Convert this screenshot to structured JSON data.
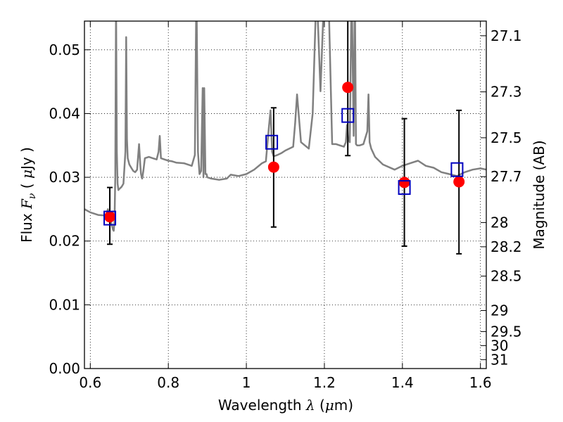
{
  "chart_data": {
    "type": "line",
    "title": "",
    "xlabel": {
      "prefix": "Wavelength ",
      "symbol": "λ",
      "units_open": " (",
      "units_mu": "μ",
      "units_rest": "m)"
    },
    "ylabel": {
      "prefix": "Flux ",
      "symbol": "F",
      "subscript": "ν",
      "units_open": " ( ",
      "units_mu": "μ",
      "units_rest": "Jy )"
    },
    "y2label": "Magnitude (AB)",
    "xlim": [
      0.585,
      1.615
    ],
    "ylim": [
      0.0,
      0.0545
    ],
    "grid": true,
    "x_ticks": [
      0.6,
      0.8,
      1.0,
      1.2,
      1.4,
      1.6
    ],
    "x_tick_labels": [
      "0.6",
      "0.8",
      "1",
      "1.2",
      "1.4",
      "1.6"
    ],
    "y_ticks": [
      0.0,
      0.01,
      0.02,
      0.03,
      0.04,
      0.05
    ],
    "y_tick_labels": [
      "0.00",
      "0.01",
      "0.02",
      "0.03",
      "0.04",
      "0.05"
    ],
    "y2_ticks": [
      {
        "label": "27.1",
        "flux": 0.0522
      },
      {
        "label": "27.3",
        "flux": 0.0434
      },
      {
        "label": "27.5",
        "flux": 0.0362
      },
      {
        "label": "27.7",
        "flux": 0.0301
      },
      {
        "label": "28",
        "flux": 0.0229
      },
      {
        "label": "28.2",
        "flux": 0.0191
      },
      {
        "label": "28.5",
        "flux": 0.0145
      },
      {
        "label": "29",
        "flux": 0.0091
      },
      {
        "label": "29.5",
        "flux": 0.0058
      },
      {
        "label": "30",
        "flux": 0.0036
      },
      {
        "label": "31",
        "flux": 0.0014
      }
    ],
    "series": [
      {
        "kind": "model_sed",
        "color": "#808080",
        "x": [
          0.585,
          0.6,
          0.62,
          0.64,
          0.645,
          0.65,
          0.655,
          0.658,
          0.66,
          0.662,
          0.664,
          0.666,
          0.668,
          0.67,
          0.672,
          0.675,
          0.68,
          0.685,
          0.69,
          0.692,
          0.694,
          0.696,
          0.7,
          0.705,
          0.71,
          0.715,
          0.72,
          0.725,
          0.728,
          0.73,
          0.733,
          0.736,
          0.74,
          0.75,
          0.76,
          0.77,
          0.775,
          0.778,
          0.781,
          0.79,
          0.8,
          0.81,
          0.82,
          0.84,
          0.86,
          0.868,
          0.872,
          0.876,
          0.88,
          0.884,
          0.888,
          0.89,
          0.892,
          0.895,
          0.898,
          0.9,
          0.91,
          0.93,
          0.95,
          0.96,
          0.98,
          1.0,
          1.02,
          1.04,
          1.05,
          1.058,
          1.062,
          1.066,
          1.07,
          1.08,
          1.09,
          1.1,
          1.12,
          1.125,
          1.13,
          1.14,
          1.16,
          1.17,
          1.18,
          1.19,
          1.2,
          1.21,
          1.22,
          1.23,
          1.24,
          1.25,
          1.255,
          1.258,
          1.261,
          1.265,
          1.27,
          1.275,
          1.278,
          1.281,
          1.284,
          1.29,
          1.3,
          1.31,
          1.313,
          1.316,
          1.32,
          1.33,
          1.35,
          1.38,
          1.4,
          1.42,
          1.44,
          1.46,
          1.48,
          1.5,
          1.52,
          1.54,
          1.56,
          1.58,
          1.6,
          1.615
        ],
        "y": [
          0.025,
          0.0245,
          0.0241,
          0.024,
          0.025,
          0.0238,
          0.0225,
          0.0218,
          0.0216,
          0.023,
          0.03,
          0.058,
          0.034,
          0.029,
          0.028,
          0.0282,
          0.0285,
          0.029,
          0.034,
          0.052,
          0.036,
          0.033,
          0.032,
          0.0315,
          0.031,
          0.0308,
          0.0312,
          0.0352,
          0.032,
          0.0305,
          0.0298,
          0.031,
          0.033,
          0.0332,
          0.033,
          0.0328,
          0.034,
          0.0365,
          0.033,
          0.0328,
          0.0326,
          0.0325,
          0.0323,
          0.0322,
          0.0318,
          0.0335,
          0.06,
          0.034,
          0.0305,
          0.031,
          0.044,
          0.03,
          0.044,
          0.0305,
          0.0305,
          0.03,
          0.0298,
          0.0296,
          0.0298,
          0.0304,
          0.0302,
          0.0305,
          0.0312,
          0.0322,
          0.0325,
          0.038,
          0.0405,
          0.034,
          0.0333,
          0.0335,
          0.0338,
          0.0342,
          0.0348,
          0.0385,
          0.043,
          0.0355,
          0.0345,
          0.04,
          0.06,
          0.0435,
          0.06,
          0.06,
          0.0352,
          0.0352,
          0.035,
          0.0348,
          0.0355,
          0.0382,
          0.036,
          0.0355,
          0.06,
          0.0365,
          0.06,
          0.0352,
          0.035,
          0.035,
          0.0352,
          0.0372,
          0.043,
          0.0355,
          0.0345,
          0.0332,
          0.032,
          0.0312,
          0.0318,
          0.0322,
          0.0326,
          0.0318,
          0.0315,
          0.0308,
          0.0305,
          0.0302,
          0.0308,
          0.0312,
          0.0314,
          0.0312
        ]
      },
      {
        "kind": "observed",
        "marker": "circle",
        "color": "#ff0000",
        "x": [
          0.65,
          1.07,
          1.26,
          1.405,
          1.545
        ],
        "y": [
          0.0238,
          0.0316,
          0.0441,
          0.0292,
          0.0293
        ]
      },
      {
        "kind": "model_bandflux",
        "marker": "open-square",
        "color": "#0000bf",
        "x": [
          0.65,
          1.065,
          1.26,
          1.405,
          1.54
        ],
        "y": [
          0.0236,
          0.0355,
          0.0397,
          0.0284,
          0.0312
        ]
      },
      {
        "kind": "error_bars",
        "color": "#000000",
        "x": [
          0.65,
          1.07,
          1.26,
          1.405,
          1.545
        ],
        "y_low": [
          0.0195,
          0.0222,
          0.0334,
          0.0192,
          0.018
        ],
        "y_high": [
          0.0284,
          0.0409,
          0.055,
          0.0392,
          0.0405
        ]
      }
    ]
  }
}
